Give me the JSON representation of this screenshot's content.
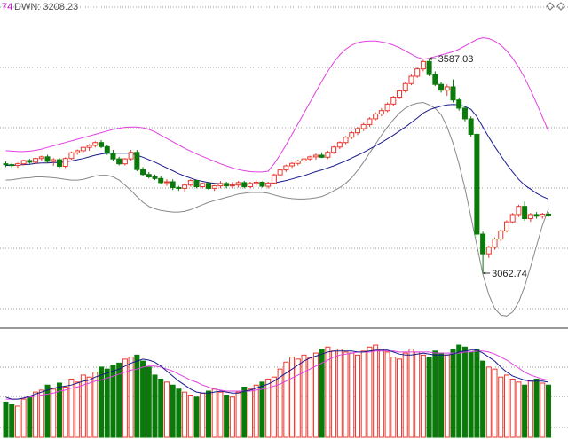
{
  "header": {
    "prefix": "74",
    "indicator_text": "DWN: 3208.23",
    "prefix_color": "#cc00cc",
    "text_color": "#555555",
    "corner_icon": "diamond-icon"
  },
  "colors": {
    "up": "#e8382f",
    "down": "#0a7a0a",
    "upper_band": "#e040e0",
    "lower_band": "#888888",
    "ma": "#1a1a8c",
    "vol_ma_short": "#1a1a8c",
    "vol_ma_long": "#e040e0",
    "grid": "#9a9a9a"
  },
  "chart_data": [
    {
      "type": "candlestick",
      "title": "",
      "annotations": [
        {
          "text": "3587.03",
          "value": 3587.03,
          "index": 71
        },
        {
          "text": "3062.74",
          "value": 3062.74,
          "index": 80
        }
      ],
      "ylim": [
        2950,
        3700
      ],
      "candles": [
        [
          3330,
          3336,
          3322,
          3328
        ],
        [
          3328,
          3332,
          3320,
          3326
        ],
        [
          3326,
          3333,
          3320,
          3330
        ],
        [
          3330,
          3340,
          3326,
          3338
        ],
        [
          3338,
          3342,
          3330,
          3334
        ],
        [
          3334,
          3345,
          3330,
          3343
        ],
        [
          3343,
          3350,
          3338,
          3347
        ],
        [
          3347,
          3352,
          3332,
          3336
        ],
        [
          3336,
          3344,
          3325,
          3340
        ],
        [
          3340,
          3344,
          3320,
          3324
        ],
        [
          3324,
          3346,
          3320,
          3343
        ],
        [
          3343,
          3360,
          3340,
          3357
        ],
        [
          3357,
          3365,
          3352,
          3362
        ],
        [
          3362,
          3372,
          3358,
          3370
        ],
        [
          3370,
          3378,
          3362,
          3375
        ],
        [
          3375,
          3385,
          3370,
          3382
        ],
        [
          3382,
          3388,
          3368,
          3372
        ],
        [
          3372,
          3375,
          3352,
          3356
        ],
        [
          3356,
          3364,
          3338,
          3342
        ],
        [
          3342,
          3347,
          3326,
          3330
        ],
        [
          3330,
          3344,
          3326,
          3342
        ],
        [
          3342,
          3364,
          3338,
          3358
        ],
        [
          3358,
          3364,
          3312,
          3316
        ],
        [
          3316,
          3322,
          3300,
          3304
        ],
        [
          3304,
          3310,
          3294,
          3298
        ],
        [
          3298,
          3304,
          3290,
          3294
        ],
        [
          3294,
          3300,
          3280,
          3284
        ],
        [
          3284,
          3292,
          3276,
          3286
        ],
        [
          3286,
          3292,
          3266,
          3272
        ],
        [
          3272,
          3276,
          3264,
          3270
        ],
        [
          3270,
          3282,
          3262,
          3278
        ],
        [
          3278,
          3292,
          3274,
          3289
        ],
        [
          3289,
          3290,
          3270,
          3274
        ],
        [
          3274,
          3284,
          3270,
          3282
        ],
        [
          3282,
          3286,
          3266,
          3270
        ],
        [
          3270,
          3278,
          3264,
          3276
        ],
        [
          3276,
          3288,
          3270,
          3282
        ],
        [
          3282,
          3286,
          3270,
          3276
        ],
        [
          3276,
          3285,
          3270,
          3278
        ],
        [
          3278,
          3288,
          3272,
          3284
        ],
        [
          3284,
          3288,
          3270,
          3274
        ],
        [
          3274,
          3286,
          3270,
          3282
        ],
        [
          3282,
          3290,
          3276,
          3285
        ],
        [
          3285,
          3287,
          3272,
          3275
        ],
        [
          3275,
          3286,
          3270,
          3283
        ],
        [
          3283,
          3306,
          3280,
          3303
        ],
        [
          3303,
          3318,
          3300,
          3315
        ],
        [
          3315,
          3328,
          3310,
          3325
        ],
        [
          3325,
          3334,
          3320,
          3331
        ],
        [
          3331,
          3340,
          3326,
          3337
        ],
        [
          3337,
          3345,
          3332,
          3342
        ],
        [
          3342,
          3350,
          3336,
          3347
        ],
        [
          3347,
          3355,
          3340,
          3351
        ],
        [
          3351,
          3358,
          3344,
          3346
        ],
        [
          3346,
          3362,
          3342,
          3358
        ],
        [
          3358,
          3374,
          3354,
          3371
        ],
        [
          3371,
          3385,
          3366,
          3382
        ],
        [
          3382,
          3398,
          3378,
          3395
        ],
        [
          3395,
          3410,
          3390,
          3406
        ],
        [
          3406,
          3420,
          3400,
          3416
        ],
        [
          3416,
          3430,
          3410,
          3426
        ],
        [
          3426,
          3444,
          3420,
          3440
        ],
        [
          3440,
          3456,
          3436,
          3452
        ],
        [
          3452,
          3466,
          3446,
          3460
        ],
        [
          3460,
          3480,
          3456,
          3476
        ],
        [
          3476,
          3496,
          3472,
          3493
        ],
        [
          3493,
          3512,
          3488,
          3508
        ],
        [
          3508,
          3530,
          3504,
          3526
        ],
        [
          3526,
          3548,
          3522,
          3544
        ],
        [
          3544,
          3566,
          3540,
          3562
        ],
        [
          3562,
          3584,
          3556,
          3580
        ],
        [
          3580,
          3587,
          3544,
          3548
        ],
        [
          3548,
          3556,
          3520,
          3524
        ],
        [
          3524,
          3530,
          3504,
          3510
        ],
        [
          3510,
          3524,
          3496,
          3518
        ],
        [
          3518,
          3536,
          3480,
          3486
        ],
        [
          3486,
          3492,
          3460,
          3466
        ],
        [
          3466,
          3472,
          3434,
          3440
        ],
        [
          3440,
          3446,
          3396,
          3402
        ],
        [
          3402,
          3406,
          3150,
          3158
        ],
        [
          3158,
          3164,
          3062,
          3110
        ],
        [
          3110,
          3130,
          3100,
          3126
        ],
        [
          3126,
          3150,
          3120,
          3146
        ],
        [
          3146,
          3170,
          3140,
          3166
        ],
        [
          3166,
          3192,
          3162,
          3188
        ],
        [
          3188,
          3210,
          3184,
          3206
        ],
        [
          3206,
          3230,
          3200,
          3226
        ],
        [
          3226,
          3238,
          3190,
          3196
        ],
        [
          3196,
          3210,
          3188,
          3206
        ],
        [
          3206,
          3212,
          3196,
          3202
        ],
        [
          3202,
          3210,
          3196,
          3207
        ],
        [
          3207,
          3212,
          3200,
          3203
        ]
      ],
      "ma": [
        3326,
        3326,
        3327,
        3328,
        3329,
        3331,
        3332,
        3332,
        3333,
        3333,
        3335,
        3337,
        3340,
        3343,
        3347,
        3351,
        3354,
        3356,
        3356,
        3356,
        3356,
        3356,
        3351,
        3346,
        3340,
        3334,
        3327,
        3320,
        3313,
        3306,
        3300,
        3295,
        3290,
        3287,
        3284,
        3282,
        3281,
        3280,
        3280,
        3280,
        3280,
        3280,
        3281,
        3281,
        3281,
        3283,
        3286,
        3289,
        3293,
        3297,
        3301,
        3306,
        3311,
        3315,
        3320,
        3325,
        3331,
        3337,
        3344,
        3351,
        3358,
        3366,
        3374,
        3382,
        3391,
        3400,
        3410,
        3420,
        3431,
        3442,
        3454,
        3462,
        3467,
        3471,
        3474,
        3475,
        3474,
        3470,
        3463,
        3445,
        3420,
        3395,
        3372,
        3350,
        3329,
        3310,
        3292,
        3278,
        3268,
        3258,
        3250,
        3244
      ],
      "upper": [
        3362,
        3361,
        3360,
        3360,
        3361,
        3363,
        3366,
        3370,
        3374,
        3378,
        3382,
        3386,
        3390,
        3394,
        3398,
        3402,
        3406,
        3410,
        3414,
        3417,
        3419,
        3420,
        3420,
        3418,
        3414,
        3408,
        3400,
        3392,
        3384,
        3376,
        3368,
        3361,
        3354,
        3348,
        3342,
        3336,
        3330,
        3325,
        3320,
        3316,
        3313,
        3311,
        3310,
        3310,
        3312,
        3330,
        3352,
        3376,
        3402,
        3428,
        3454,
        3480,
        3506,
        3532,
        3556,
        3578,
        3596,
        3610,
        3620,
        3626,
        3629,
        3630,
        3630,
        3628,
        3625,
        3620,
        3614,
        3606,
        3598,
        3590,
        3586,
        3588,
        3592,
        3596,
        3600,
        3604,
        3610,
        3618,
        3626,
        3634,
        3638,
        3636,
        3630,
        3620,
        3606,
        3588,
        3566,
        3540,
        3510,
        3478,
        3444,
        3410
      ],
      "lower": [
        3290,
        3291,
        3293,
        3295,
        3296,
        3298,
        3298,
        3297,
        3296,
        3294,
        3292,
        3290,
        3290,
        3292,
        3296,
        3300,
        3302,
        3302,
        3298,
        3290,
        3278,
        3265,
        3250,
        3236,
        3226,
        3220,
        3216,
        3214,
        3212,
        3212,
        3214,
        3218,
        3224,
        3230,
        3236,
        3240,
        3244,
        3248,
        3252,
        3256,
        3258,
        3260,
        3260,
        3260,
        3258,
        3254,
        3250,
        3247,
        3245,
        3244,
        3244,
        3245,
        3247,
        3250,
        3256,
        3264,
        3272,
        3282,
        3296,
        3314,
        3334,
        3356,
        3378,
        3400,
        3420,
        3438,
        3454,
        3466,
        3474,
        3478,
        3480,
        3474,
        3466,
        3450,
        3420,
        3380,
        3330,
        3270,
        3200,
        3130,
        3060,
        3010,
        2976,
        2960,
        2958,
        2968,
        2992,
        3030,
        3078,
        3130,
        3180,
        3220
      ]
    },
    {
      "type": "bar",
      "title": "",
      "ylim": [
        0,
        100
      ],
      "volumes": [
        35,
        33,
        31,
        38,
        40,
        45,
        47,
        52,
        48,
        54,
        50,
        58,
        55,
        62,
        60,
        65,
        70,
        68,
        72,
        74,
        78,
        80,
        82,
        76,
        70,
        62,
        58,
        55,
        52,
        48,
        45,
        42,
        40,
        44,
        46,
        48,
        45,
        42,
        40,
        45,
        50,
        48,
        52,
        55,
        58,
        60,
        68,
        75,
        80,
        78,
        82,
        79,
        84,
        88,
        90,
        86,
        88,
        85,
        84,
        82,
        86,
        90,
        92,
        88,
        85,
        80,
        78,
        84,
        88,
        85,
        82,
        80,
        86,
        84,
        82,
        88,
        92,
        90,
        85,
        88,
        76,
        70,
        68,
        60,
        62,
        58,
        55,
        52,
        56,
        58,
        54,
        52
      ],
      "ma_short": [
        40,
        38,
        38,
        39,
        41,
        43,
        45,
        47,
        49,
        50,
        51,
        52,
        54,
        56,
        57,
        60,
        62,
        64,
        66,
        68,
        71,
        74,
        76,
        78,
        77,
        75,
        71,
        66,
        61,
        56,
        52,
        48,
        45,
        44,
        44,
        45,
        46,
        45,
        44,
        44,
        46,
        47,
        49,
        51,
        53,
        56,
        60,
        64,
        68,
        72,
        76,
        79,
        81,
        83,
        85,
        86,
        86,
        86,
        86,
        85,
        85,
        86,
        87,
        87,
        87,
        85,
        83,
        82,
        82,
        83,
        84,
        83,
        82,
        82,
        82,
        83,
        85,
        86,
        87,
        87,
        84,
        80,
        76,
        70,
        65,
        61,
        59,
        57,
        56,
        56,
        56,
        55
      ],
      "ma_long": [
        38,
        38,
        38,
        39,
        40,
        41,
        42,
        43,
        44,
        46,
        47,
        49,
        50,
        52,
        54,
        56,
        57,
        59,
        61,
        63,
        65,
        67,
        68,
        70,
        71,
        71,
        70,
        68,
        66,
        63,
        60,
        57,
        55,
        52,
        50,
        48,
        47,
        46,
        46,
        46,
        46,
        46,
        47,
        48,
        49,
        51,
        53,
        56,
        59,
        62,
        65,
        68,
        71,
        74,
        77,
        80,
        82,
        83,
        84,
        85,
        85,
        85,
        86,
        86,
        86,
        86,
        85,
        85,
        85,
        85,
        85,
        85,
        84,
        84,
        84,
        84,
        84,
        85,
        85,
        86,
        86,
        85,
        83,
        80,
        77,
        73,
        69,
        65,
        62,
        60,
        58,
        57
      ]
    }
  ]
}
